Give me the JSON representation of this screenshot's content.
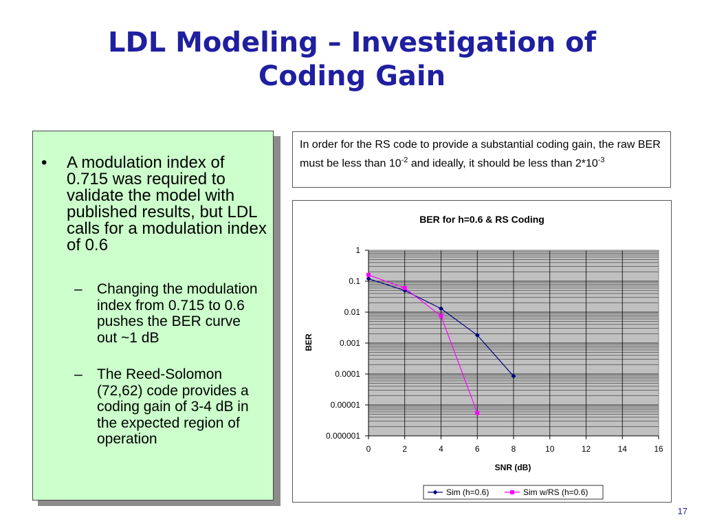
{
  "slide": {
    "title_line1": "LDL Modeling – Investigation of",
    "title_line2": "Coding Gain",
    "page_number": "17"
  },
  "bullets": {
    "main_marker": "•",
    "main_text": "A modulation index of 0.715 was required to validate the model with published results, but LDL calls for a modulation index of 0.6",
    "sub_marker": "–",
    "sub1": "Changing the modulation index from 0.715 to 0.6 pushes the BER curve out ~1 dB",
    "sub2": "The Reed-Solomon (72,62) code provides a coding gain of 3-4 dB in the expected region of operation"
  },
  "note": {
    "part1": "In order for the RS code to provide a substantial coding gain, the raw BER must be less than 10",
    "sup1": "-2",
    "part2": "  and ideally, it should be less than 2*10",
    "sup2": "-3"
  },
  "chart_data": {
    "type": "line",
    "title": "BER for h=0.6 & RS Coding",
    "xlabel": "SNR (dB)",
    "ylabel": "BER",
    "xlim": [
      0,
      16
    ],
    "ylim": [
      1e-06,
      1
    ],
    "yscale": "log",
    "x_ticks": [
      "0",
      "2",
      "4",
      "6",
      "8",
      "10",
      "12",
      "14",
      "16"
    ],
    "y_ticks": [
      "1",
      "0.1",
      "0.01",
      "0.001",
      "0.0001",
      "0.00001",
      "0.000001"
    ],
    "grid": true,
    "legend_position": "bottom",
    "series": [
      {
        "name": "Sim (h=0.6)",
        "color": "#000080",
        "marker": "diamond",
        "x": [
          0,
          2,
          4,
          6,
          8
        ],
        "y": [
          0.12,
          0.05,
          0.013,
          0.0018,
          8.5e-05
        ]
      },
      {
        "name": "Sim w/RS (h=0.6)",
        "color": "#ff00ff",
        "marker": "square",
        "x": [
          0,
          2,
          4,
          6
        ],
        "y": [
          0.16,
          0.06,
          0.0075,
          5.5e-06
        ]
      }
    ]
  }
}
